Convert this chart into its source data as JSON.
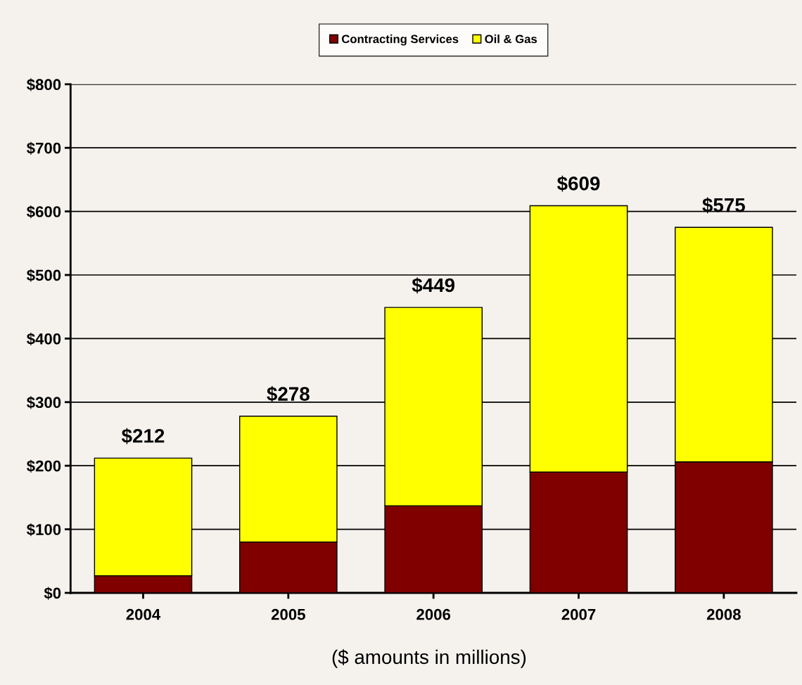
{
  "chart_data": {
    "type": "bar",
    "stacked": true,
    "categories": [
      "2004",
      "2005",
      "2006",
      "2007",
      "2008"
    ],
    "series": [
      {
        "name": "Contracting Services",
        "color": "#800000",
        "values": [
          27,
          80,
          137,
          190,
          206
        ]
      },
      {
        "name": "Oil & Gas",
        "color": "#ffff00",
        "values": [
          185,
          198,
          312,
          419,
          369
        ]
      }
    ],
    "totals": [
      "$212",
      "$278",
      "$449",
      "$609",
      "$575"
    ],
    "ylim": [
      0,
      800
    ],
    "yticks": [
      {
        "value": 0,
        "label": "$0"
      },
      {
        "value": 100,
        "label": "$100"
      },
      {
        "value": 200,
        "label": "$200"
      },
      {
        "value": 300,
        "label": "$300"
      },
      {
        "value": 400,
        "label": "$400"
      },
      {
        "value": 500,
        "label": "$500"
      },
      {
        "value": 600,
        "label": "$600"
      },
      {
        "value": 700,
        "label": "$700"
      },
      {
        "value": 800,
        "label": "$800"
      }
    ],
    "grid": "y",
    "legend": "top",
    "annotations": [
      "($ amounts in millions)"
    ]
  }
}
